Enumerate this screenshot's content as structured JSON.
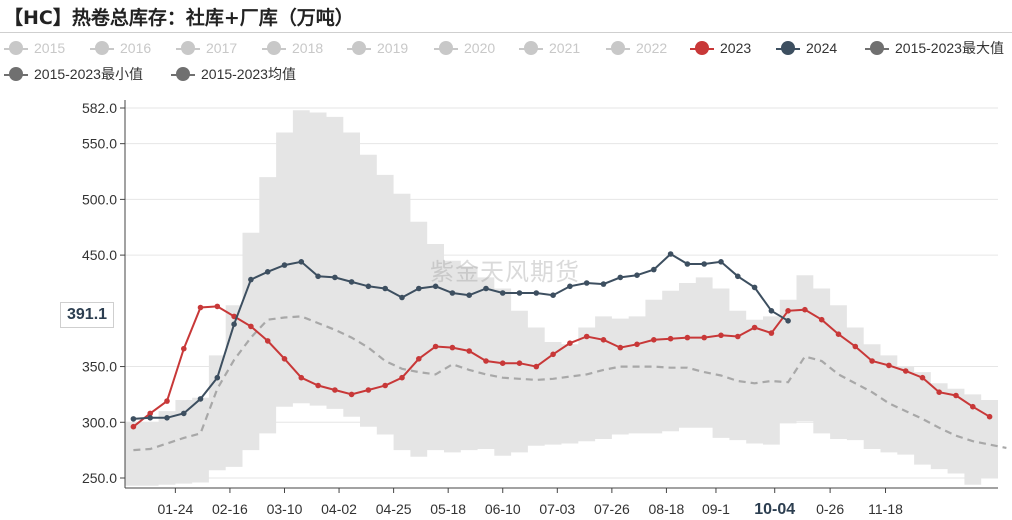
{
  "title": "【HC】热卷总库存：社库+厂库（万吨）",
  "watermark": "紫金天风期货",
  "colors": {
    "y2023": "#c83838",
    "y2024": "#3d4f60",
    "band": "#e5e5e5",
    "avg": "#a8a8a8",
    "inactive": "#c8c8c8",
    "legend_grey": "#707070",
    "grid": "#e6e6e6",
    "axis": "#444444"
  },
  "legend": [
    {
      "label": "2015",
      "active": false
    },
    {
      "label": "2016",
      "active": false
    },
    {
      "label": "2017",
      "active": false
    },
    {
      "label": "2018",
      "active": false
    },
    {
      "label": "2019",
      "active": false
    },
    {
      "label": "2020",
      "active": false
    },
    {
      "label": "2021",
      "active": false
    },
    {
      "label": "2022",
      "active": false
    },
    {
      "label": "2023",
      "active": true,
      "color": "#c83838"
    },
    {
      "label": "2024",
      "active": true,
      "color": "#3d4f60"
    },
    {
      "label": "2015-2023最大值",
      "active": true,
      "color": "#707070"
    },
    {
      "label": "2015-2023最小值",
      "active": true,
      "color": "#707070"
    },
    {
      "label": "2015-2023均值",
      "active": true,
      "color": "#707070"
    }
  ],
  "axis_pointer": "391.1",
  "chart_data": {
    "type": "line",
    "title": "【HC】热卷总库存：社库+厂库（万吨）",
    "xlabel": "",
    "ylabel": "",
    "ylim": [
      250,
      582
    ],
    "yticks": [
      "250.0",
      "300.0",
      "350.0",
      "391.1",
      "450.0",
      "500.0",
      "550.0",
      "582.0"
    ],
    "x_tick_labels": [
      "01-24",
      "02-16",
      "03-10",
      "04-02",
      "04-25",
      "05-18",
      "06-10",
      "07-03",
      "07-26",
      "08-18",
      "09-1",
      "10-04",
      "0-26",
      "11-18"
    ],
    "x_tick_weeks": [
      3,
      6.25,
      9.5,
      12.75,
      16,
      19.25,
      22.5,
      25.75,
      29,
      32.25,
      35.2,
      38.7,
      42,
      45.3
    ],
    "highlight_tick": "10-04",
    "n_weeks": 52,
    "series": [
      {
        "name": "2023",
        "x_start": 0.5,
        "values": [
          296,
          308,
          319,
          366,
          403,
          404,
          395,
          386,
          373,
          357,
          340,
          333,
          329,
          325,
          329,
          333,
          340,
          357,
          368,
          367,
          364,
          355,
          353,
          353,
          350,
          361,
          371,
          377,
          374,
          367,
          370,
          374,
          375,
          376,
          376,
          378,
          377,
          385,
          380,
          400,
          401,
          392,
          379,
          368,
          355,
          351,
          346,
          340,
          327,
          324,
          314,
          305
        ]
      },
      {
        "name": "2024",
        "x_start": 0.5,
        "values": [
          303,
          304,
          304,
          308,
          321,
          340,
          388,
          428,
          435,
          441,
          444,
          431,
          430,
          426,
          422,
          420,
          412,
          420,
          422,
          416,
          414,
          420,
          416,
          416,
          416,
          414,
          422,
          425,
          424,
          430,
          432,
          437,
          451,
          442,
          442,
          444,
          431,
          421,
          400,
          391.1
        ]
      },
      {
        "name": "2015-2023最大值",
        "x_start": 0,
        "values": [
          300,
          300,
          310,
          320,
          322,
          360,
          405,
          470,
          520,
          560,
          580,
          578,
          574,
          560,
          540,
          522,
          505,
          480,
          460,
          445,
          440,
          430,
          420,
          400,
          385,
          372,
          370,
          385,
          395,
          393,
          395,
          410,
          418,
          425,
          430,
          420,
          400,
          392,
          395,
          410,
          432,
          420,
          405,
          385,
          370,
          360,
          350,
          345,
          335,
          330,
          325,
          320,
          310
        ]
      },
      {
        "name": "2015-2023最小值",
        "x_start": 0,
        "values": [
          243,
          243,
          244,
          245,
          246,
          257,
          260,
          275,
          290,
          314,
          317,
          315,
          312,
          305,
          296,
          289,
          275,
          269,
          275,
          273,
          275,
          276,
          270,
          273,
          279,
          280,
          281,
          283,
          285,
          289,
          290,
          290,
          292,
          295,
          295,
          286,
          284,
          281,
          280,
          299,
          301,
          290,
          285,
          284,
          276,
          273,
          271,
          262,
          258,
          254,
          244,
          250,
          252
        ]
      },
      {
        "name": "2015-2023均值",
        "x_start": 0,
        "values": [
          275,
          276,
          281,
          286,
          290,
          330,
          356,
          376,
          392,
          394,
          395,
          389,
          383,
          376,
          367,
          355,
          348,
          345,
          343,
          352,
          347,
          343,
          340,
          339,
          338,
          339,
          341,
          343,
          347,
          350,
          350,
          350,
          349,
          349,
          345,
          342,
          337,
          335,
          337,
          336,
          359,
          355,
          343,
          335,
          327,
          317,
          310,
          303,
          295,
          288,
          283,
          280,
          277
        ]
      }
    ]
  }
}
